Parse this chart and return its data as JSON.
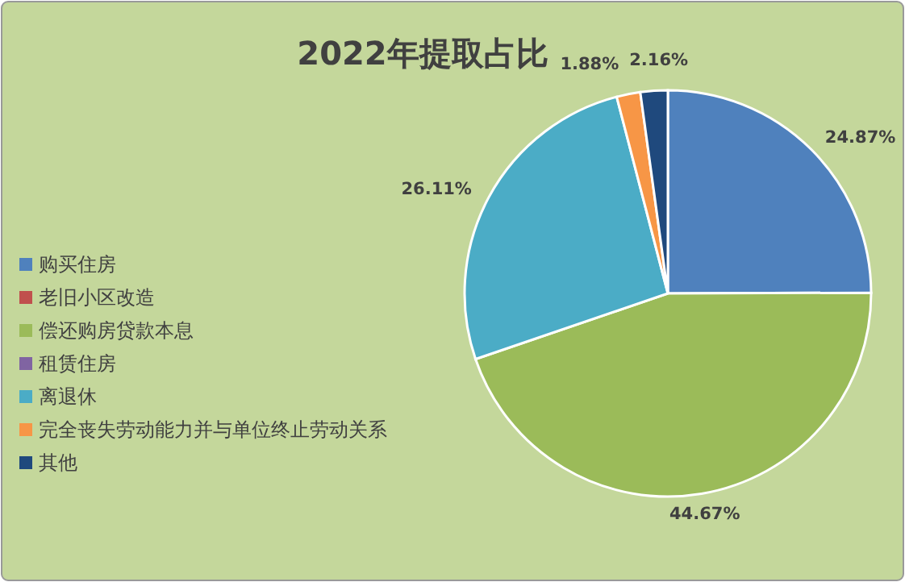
{
  "chart_data": {
    "type": "pie",
    "title": "2022年提取占比",
    "categories": [
      "购买住房",
      "老旧小区改造",
      "偿还购房贷款本息",
      "租赁住房",
      "离退休",
      "完全丧失劳动能力并与单位终止劳动关系",
      "其他"
    ],
    "values": [
      24.87,
      null,
      44.67,
      null,
      26.11,
      1.88,
      2.16
    ],
    "value_labels": [
      "24.87%",
      null,
      "44.67%",
      null,
      "26.11%",
      "1.88%",
      "2.16%"
    ],
    "colors": [
      "#4f81bd",
      "#c0504d",
      "#9bbb59",
      "#8064a2",
      "#4bacc6",
      "#f79646",
      "#1f497d"
    ],
    "legend": "left"
  }
}
